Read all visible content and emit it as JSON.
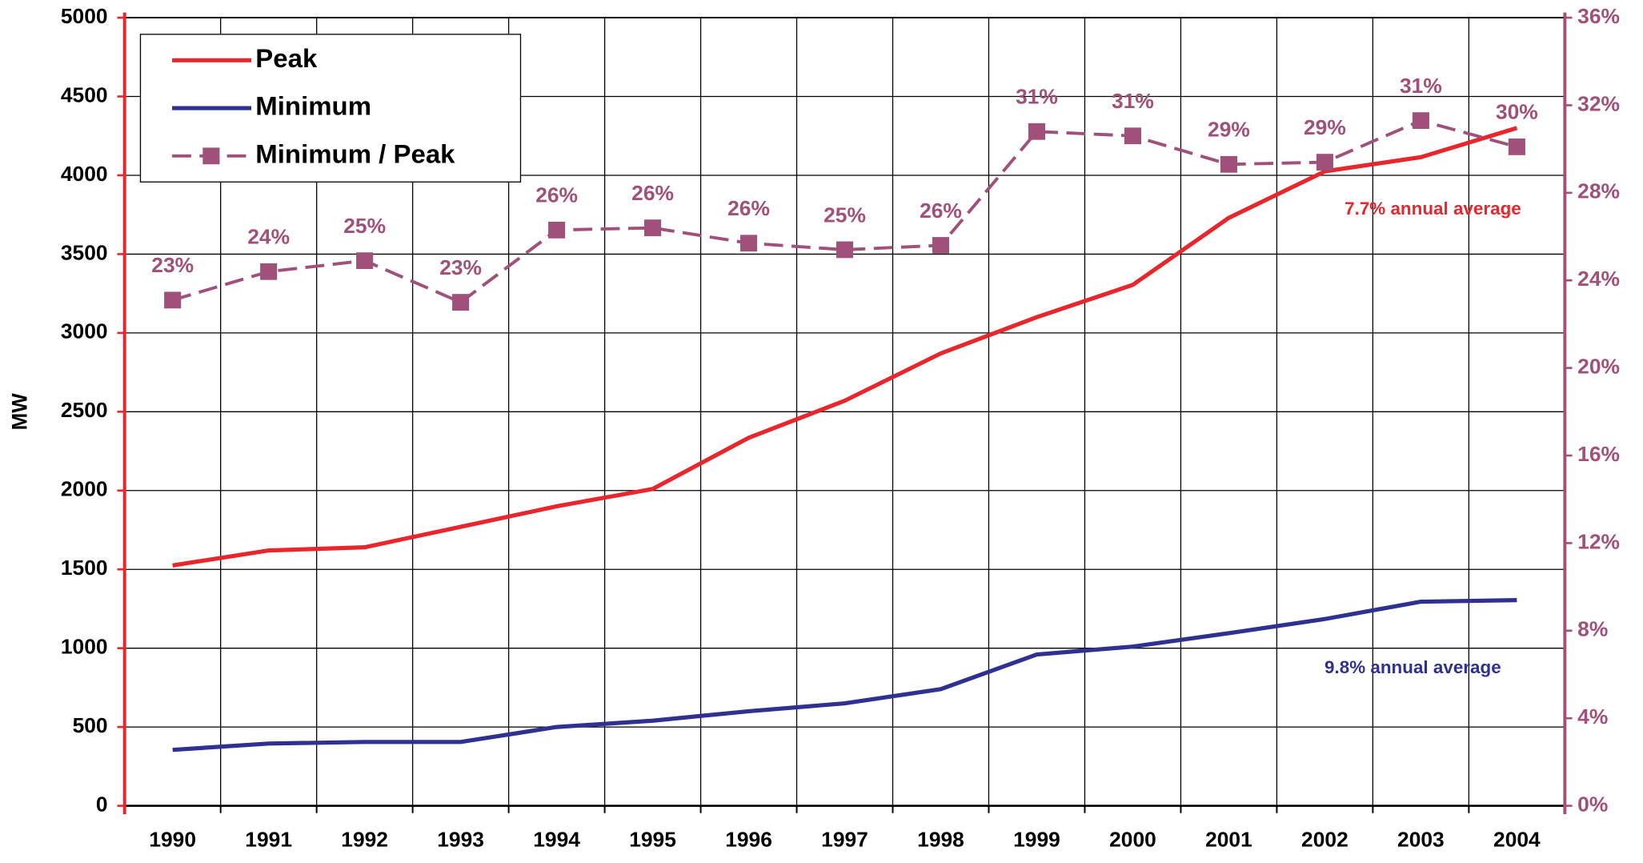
{
  "chart_data": {
    "type": "line",
    "y_label": "MW",
    "categories": [
      "1990",
      "1991",
      "1992",
      "1993",
      "1994",
      "1995",
      "1996",
      "1997",
      "1998",
      "1999",
      "2000",
      "2001",
      "2002",
      "2003",
      "2004"
    ],
    "ylim": [
      0,
      5000
    ],
    "yticks": [
      0,
      500,
      1000,
      1500,
      2000,
      2500,
      3000,
      3500,
      4000,
      4500,
      5000
    ],
    "y2lim": [
      0,
      36
    ],
    "y2ticks": [
      {
        "value": 0,
        "label": "0%"
      },
      {
        "value": 4,
        "label": "4%"
      },
      {
        "value": 8,
        "label": "8%"
      },
      {
        "value": 12,
        "label": "12%"
      },
      {
        "value": 16,
        "label": "16%"
      },
      {
        "value": 20,
        "label": "20%"
      },
      {
        "value": 24,
        "label": "24%"
      },
      {
        "value": 28,
        "label": "28%"
      },
      {
        "value": 32,
        "label": "32%"
      },
      {
        "value": 36,
        "label": "36%"
      }
    ],
    "grid": true,
    "legend": "upper left",
    "series": [
      {
        "name": "Peak",
        "color": "#e8262b",
        "values": [
          1525,
          1620,
          1640,
          1770,
          1900,
          2010,
          2335,
          2570,
          2870,
          3100,
          3305,
          3730,
          4025,
          4115,
          4300
        ]
      },
      {
        "name": "Minimum",
        "color": "#2e3192",
        "values": [
          355,
          395,
          405,
          405,
          500,
          540,
          600,
          650,
          740,
          960,
          1010,
          1095,
          1185,
          1295,
          1305
        ]
      },
      {
        "name": "Minimum / Peak",
        "color": "#a0507a",
        "axis": "y2",
        "dashed": true,
        "marker": "square",
        "values": [
          23.1,
          24.4,
          24.9,
          23.0,
          26.3,
          26.4,
          25.7,
          25.4,
          25.6,
          30.8,
          30.6,
          29.3,
          29.4,
          31.3,
          30.1
        ],
        "value_labels": [
          "23%",
          "24%",
          "25%",
          "23%",
          "26%",
          "26%",
          "26%",
          "25%",
          "26%",
          "31%",
          "31%",
          "29%",
          "29%",
          "31%",
          "30%"
        ]
      }
    ],
    "annotations": [
      "7.7% annual average",
      "9.8% annual average"
    ]
  }
}
